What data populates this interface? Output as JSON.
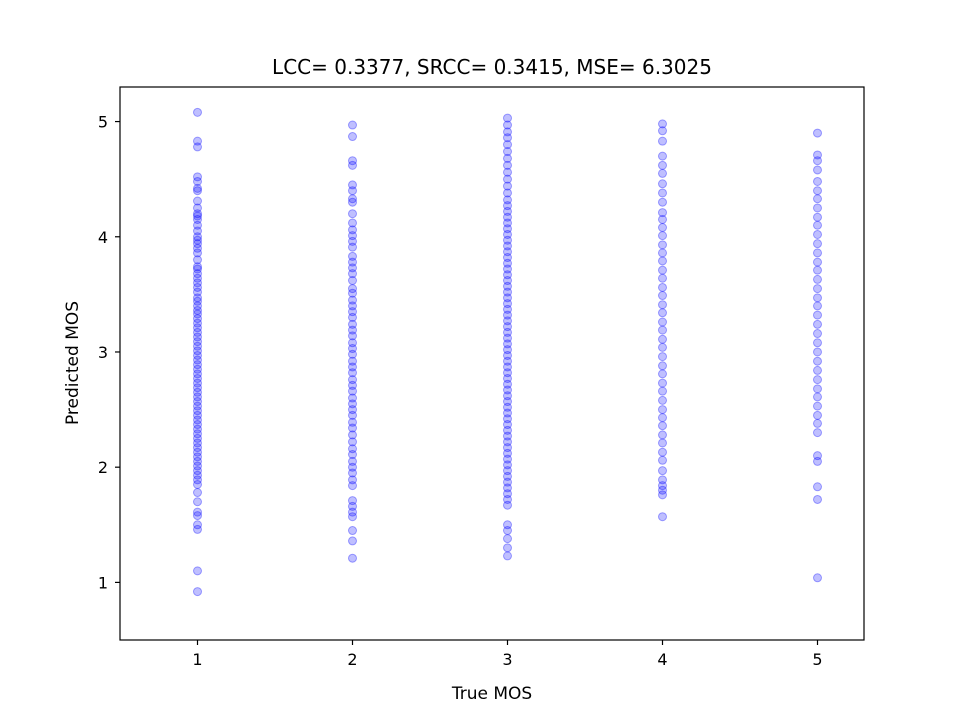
{
  "chart_data": {
    "type": "scatter",
    "title": "LCC= 0.3377, SRCC= 0.3415, MSE= 6.3025",
    "xlabel": "True MOS",
    "ylabel": "Predicted MOS",
    "xlim": [
      0.5,
      5.3
    ],
    "ylim": [
      0.5,
      5.3
    ],
    "xticks": [
      1,
      2,
      3,
      4,
      5
    ],
    "yticks": [
      1,
      2,
      3,
      4,
      5
    ],
    "grid": false,
    "marker_color": "#0000ff",
    "marker_alpha": 0.25,
    "series": [
      {
        "points": [
          {
            "x": 1,
            "y": 5.08
          },
          {
            "x": 1,
            "y": 4.83
          },
          {
            "x": 1,
            "y": 4.78
          },
          {
            "x": 1,
            "y": 4.52
          },
          {
            "x": 1,
            "y": 4.48
          },
          {
            "x": 1,
            "y": 4.42
          },
          {
            "x": 1,
            "y": 4.4
          },
          {
            "x": 1,
            "y": 4.31
          },
          {
            "x": 1,
            "y": 4.25
          },
          {
            "x": 1,
            "y": 4.2
          },
          {
            "x": 1,
            "y": 4.18
          },
          {
            "x": 1,
            "y": 4.15
          },
          {
            "x": 1,
            "y": 4.1
          },
          {
            "x": 1,
            "y": 4.05
          },
          {
            "x": 1,
            "y": 4.0
          },
          {
            "x": 1,
            "y": 3.97
          },
          {
            "x": 1,
            "y": 3.94
          },
          {
            "x": 1,
            "y": 3.9
          },
          {
            "x": 1,
            "y": 3.86
          },
          {
            "x": 1,
            "y": 3.8
          },
          {
            "x": 1,
            "y": 3.74
          },
          {
            "x": 1,
            "y": 3.72
          },
          {
            "x": 1,
            "y": 3.68
          },
          {
            "x": 1,
            "y": 3.64
          },
          {
            "x": 1,
            "y": 3.6
          },
          {
            "x": 1,
            "y": 3.56
          },
          {
            "x": 1,
            "y": 3.52
          },
          {
            "x": 1,
            "y": 3.47
          },
          {
            "x": 1,
            "y": 3.44
          },
          {
            "x": 1,
            "y": 3.4
          },
          {
            "x": 1,
            "y": 3.36
          },
          {
            "x": 1,
            "y": 3.33
          },
          {
            "x": 1,
            "y": 3.29
          },
          {
            "x": 1,
            "y": 3.25
          },
          {
            "x": 1,
            "y": 3.21
          },
          {
            "x": 1,
            "y": 3.17
          },
          {
            "x": 1,
            "y": 3.13
          },
          {
            "x": 1,
            "y": 3.09
          },
          {
            "x": 1,
            "y": 3.05
          },
          {
            "x": 1,
            "y": 3.01
          },
          {
            "x": 1,
            "y": 2.97
          },
          {
            "x": 1,
            "y": 2.93
          },
          {
            "x": 1,
            "y": 2.89
          },
          {
            "x": 1,
            "y": 2.85
          },
          {
            "x": 1,
            "y": 2.81
          },
          {
            "x": 1,
            "y": 2.77
          },
          {
            "x": 1,
            "y": 2.73
          },
          {
            "x": 1,
            "y": 2.69
          },
          {
            "x": 1,
            "y": 2.65
          },
          {
            "x": 1,
            "y": 2.61
          },
          {
            "x": 1,
            "y": 2.57
          },
          {
            "x": 1,
            "y": 2.53
          },
          {
            "x": 1,
            "y": 2.49
          },
          {
            "x": 1,
            "y": 2.45
          },
          {
            "x": 1,
            "y": 2.41
          },
          {
            "x": 1,
            "y": 2.37
          },
          {
            "x": 1,
            "y": 2.33
          },
          {
            "x": 1,
            "y": 2.29
          },
          {
            "x": 1,
            "y": 2.25
          },
          {
            "x": 1,
            "y": 2.21
          },
          {
            "x": 1,
            "y": 2.17
          },
          {
            "x": 1,
            "y": 2.13
          },
          {
            "x": 1,
            "y": 2.09
          },
          {
            "x": 1,
            "y": 2.05
          },
          {
            "x": 1,
            "y": 2.01
          },
          {
            "x": 1,
            "y": 1.97
          },
          {
            "x": 1,
            "y": 1.93
          },
          {
            "x": 1,
            "y": 1.89
          },
          {
            "x": 1,
            "y": 1.85
          },
          {
            "x": 1,
            "y": 1.78
          },
          {
            "x": 1,
            "y": 1.7
          },
          {
            "x": 1,
            "y": 1.61
          },
          {
            "x": 1,
            "y": 1.58
          },
          {
            "x": 1,
            "y": 1.5
          },
          {
            "x": 1,
            "y": 1.46
          },
          {
            "x": 1,
            "y": 1.1
          },
          {
            "x": 1,
            "y": 0.92
          },
          {
            "x": 2,
            "y": 4.97
          },
          {
            "x": 2,
            "y": 4.87
          },
          {
            "x": 2,
            "y": 4.66
          },
          {
            "x": 2,
            "y": 4.62
          },
          {
            "x": 2,
            "y": 4.45
          },
          {
            "x": 2,
            "y": 4.4
          },
          {
            "x": 2,
            "y": 4.33
          },
          {
            "x": 2,
            "y": 4.3
          },
          {
            "x": 2,
            "y": 4.2
          },
          {
            "x": 2,
            "y": 4.12
          },
          {
            "x": 2,
            "y": 4.06
          },
          {
            "x": 2,
            "y": 4.01
          },
          {
            "x": 2,
            "y": 3.96
          },
          {
            "x": 2,
            "y": 3.91
          },
          {
            "x": 2,
            "y": 3.83
          },
          {
            "x": 2,
            "y": 3.78
          },
          {
            "x": 2,
            "y": 3.73
          },
          {
            "x": 2,
            "y": 3.68
          },
          {
            "x": 2,
            "y": 3.62
          },
          {
            "x": 2,
            "y": 3.55
          },
          {
            "x": 2,
            "y": 3.51
          },
          {
            "x": 2,
            "y": 3.45
          },
          {
            "x": 2,
            "y": 3.4
          },
          {
            "x": 2,
            "y": 3.35
          },
          {
            "x": 2,
            "y": 3.3
          },
          {
            "x": 2,
            "y": 3.24
          },
          {
            "x": 2,
            "y": 3.19
          },
          {
            "x": 2,
            "y": 3.14
          },
          {
            "x": 2,
            "y": 3.08
          },
          {
            "x": 2,
            "y": 3.03
          },
          {
            "x": 2,
            "y": 2.98
          },
          {
            "x": 2,
            "y": 2.92
          },
          {
            "x": 2,
            "y": 2.87
          },
          {
            "x": 2,
            "y": 2.82
          },
          {
            "x": 2,
            "y": 2.76
          },
          {
            "x": 2,
            "y": 2.71
          },
          {
            "x": 2,
            "y": 2.66
          },
          {
            "x": 2,
            "y": 2.6
          },
          {
            "x": 2,
            "y": 2.55
          },
          {
            "x": 2,
            "y": 2.5
          },
          {
            "x": 2,
            "y": 2.45
          },
          {
            "x": 2,
            "y": 2.39
          },
          {
            "x": 2,
            "y": 2.34
          },
          {
            "x": 2,
            "y": 2.28
          },
          {
            "x": 2,
            "y": 2.22
          },
          {
            "x": 2,
            "y": 2.16
          },
          {
            "x": 2,
            "y": 2.11
          },
          {
            "x": 2,
            "y": 2.05
          },
          {
            "x": 2,
            "y": 2.0
          },
          {
            "x": 2,
            "y": 1.95
          },
          {
            "x": 2,
            "y": 1.89
          },
          {
            "x": 2,
            "y": 1.84
          },
          {
            "x": 2,
            "y": 1.71
          },
          {
            "x": 2,
            "y": 1.66
          },
          {
            "x": 2,
            "y": 1.61
          },
          {
            "x": 2,
            "y": 1.57
          },
          {
            "x": 2,
            "y": 1.45
          },
          {
            "x": 2,
            "y": 1.36
          },
          {
            "x": 2,
            "y": 1.21
          },
          {
            "x": 3,
            "y": 5.03
          },
          {
            "x": 3,
            "y": 4.97
          },
          {
            "x": 3,
            "y": 4.91
          },
          {
            "x": 3,
            "y": 4.86
          },
          {
            "x": 3,
            "y": 4.8
          },
          {
            "x": 3,
            "y": 4.74
          },
          {
            "x": 3,
            "y": 4.68
          },
          {
            "x": 3,
            "y": 4.62
          },
          {
            "x": 3,
            "y": 4.56
          },
          {
            "x": 3,
            "y": 4.5
          },
          {
            "x": 3,
            "y": 4.44
          },
          {
            "x": 3,
            "y": 4.38
          },
          {
            "x": 3,
            "y": 4.32
          },
          {
            "x": 3,
            "y": 4.27
          },
          {
            "x": 3,
            "y": 4.22
          },
          {
            "x": 3,
            "y": 4.17
          },
          {
            "x": 3,
            "y": 4.12
          },
          {
            "x": 3,
            "y": 4.07
          },
          {
            "x": 3,
            "y": 4.02
          },
          {
            "x": 3,
            "y": 3.97
          },
          {
            "x": 3,
            "y": 3.92
          },
          {
            "x": 3,
            "y": 3.87
          },
          {
            "x": 3,
            "y": 3.82
          },
          {
            "x": 3,
            "y": 3.77
          },
          {
            "x": 3,
            "y": 3.72
          },
          {
            "x": 3,
            "y": 3.67
          },
          {
            "x": 3,
            "y": 3.62
          },
          {
            "x": 3,
            "y": 3.57
          },
          {
            "x": 3,
            "y": 3.52
          },
          {
            "x": 3,
            "y": 3.47
          },
          {
            "x": 3,
            "y": 3.42
          },
          {
            "x": 3,
            "y": 3.37
          },
          {
            "x": 3,
            "y": 3.32
          },
          {
            "x": 3,
            "y": 3.27
          },
          {
            "x": 3,
            "y": 3.22
          },
          {
            "x": 3,
            "y": 3.17
          },
          {
            "x": 3,
            "y": 3.12
          },
          {
            "x": 3,
            "y": 3.07
          },
          {
            "x": 3,
            "y": 3.02
          },
          {
            "x": 3,
            "y": 2.97
          },
          {
            "x": 3,
            "y": 2.92
          },
          {
            "x": 3,
            "y": 2.87
          },
          {
            "x": 3,
            "y": 2.82
          },
          {
            "x": 3,
            "y": 2.77
          },
          {
            "x": 3,
            "y": 2.72
          },
          {
            "x": 3,
            "y": 2.67
          },
          {
            "x": 3,
            "y": 2.62
          },
          {
            "x": 3,
            "y": 2.57
          },
          {
            "x": 3,
            "y": 2.52
          },
          {
            "x": 3,
            "y": 2.47
          },
          {
            "x": 3,
            "y": 2.42
          },
          {
            "x": 3,
            "y": 2.37
          },
          {
            "x": 3,
            "y": 2.32
          },
          {
            "x": 3,
            "y": 2.27
          },
          {
            "x": 3,
            "y": 2.22
          },
          {
            "x": 3,
            "y": 2.17
          },
          {
            "x": 3,
            "y": 2.12
          },
          {
            "x": 3,
            "y": 2.07
          },
          {
            "x": 3,
            "y": 2.02
          },
          {
            "x": 3,
            "y": 1.97
          },
          {
            "x": 3,
            "y": 1.92
          },
          {
            "x": 3,
            "y": 1.87
          },
          {
            "x": 3,
            "y": 1.82
          },
          {
            "x": 3,
            "y": 1.77
          },
          {
            "x": 3,
            "y": 1.72
          },
          {
            "x": 3,
            "y": 1.67
          },
          {
            "x": 3,
            "y": 1.5
          },
          {
            "x": 3,
            "y": 1.45
          },
          {
            "x": 3,
            "y": 1.38
          },
          {
            "x": 3,
            "y": 1.3
          },
          {
            "x": 3,
            "y": 1.23
          },
          {
            "x": 4,
            "y": 4.98
          },
          {
            "x": 4,
            "y": 4.92
          },
          {
            "x": 4,
            "y": 4.83
          },
          {
            "x": 4,
            "y": 4.7
          },
          {
            "x": 4,
            "y": 4.62
          },
          {
            "x": 4,
            "y": 4.55
          },
          {
            "x": 4,
            "y": 4.46
          },
          {
            "x": 4,
            "y": 4.38
          },
          {
            "x": 4,
            "y": 4.3
          },
          {
            "x": 4,
            "y": 4.21
          },
          {
            "x": 4,
            "y": 4.15
          },
          {
            "x": 4,
            "y": 4.08
          },
          {
            "x": 4,
            "y": 4.01
          },
          {
            "x": 4,
            "y": 3.93
          },
          {
            "x": 4,
            "y": 3.86
          },
          {
            "x": 4,
            "y": 3.79
          },
          {
            "x": 4,
            "y": 3.71
          },
          {
            "x": 4,
            "y": 3.64
          },
          {
            "x": 4,
            "y": 3.56
          },
          {
            "x": 4,
            "y": 3.49
          },
          {
            "x": 4,
            "y": 3.41
          },
          {
            "x": 4,
            "y": 3.34
          },
          {
            "x": 4,
            "y": 3.26
          },
          {
            "x": 4,
            "y": 3.19
          },
          {
            "x": 4,
            "y": 3.11
          },
          {
            "x": 4,
            "y": 3.04
          },
          {
            "x": 4,
            "y": 2.96
          },
          {
            "x": 4,
            "y": 2.88
          },
          {
            "x": 4,
            "y": 2.81
          },
          {
            "x": 4,
            "y": 2.73
          },
          {
            "x": 4,
            "y": 2.66
          },
          {
            "x": 4,
            "y": 2.58
          },
          {
            "x": 4,
            "y": 2.5
          },
          {
            "x": 4,
            "y": 2.43
          },
          {
            "x": 4,
            "y": 2.36
          },
          {
            "x": 4,
            "y": 2.28
          },
          {
            "x": 4,
            "y": 2.21
          },
          {
            "x": 4,
            "y": 2.13
          },
          {
            "x": 4,
            "y": 2.06
          },
          {
            "x": 4,
            "y": 1.97
          },
          {
            "x": 4,
            "y": 1.89
          },
          {
            "x": 4,
            "y": 1.84
          },
          {
            "x": 4,
            "y": 1.8
          },
          {
            "x": 4,
            "y": 1.76
          },
          {
            "x": 4,
            "y": 1.57
          },
          {
            "x": 5,
            "y": 4.9
          },
          {
            "x": 5,
            "y": 4.71
          },
          {
            "x": 5,
            "y": 4.66
          },
          {
            "x": 5,
            "y": 4.58
          },
          {
            "x": 5,
            "y": 4.48
          },
          {
            "x": 5,
            "y": 4.4
          },
          {
            "x": 5,
            "y": 4.33
          },
          {
            "x": 5,
            "y": 4.25
          },
          {
            "x": 5,
            "y": 4.17
          },
          {
            "x": 5,
            "y": 4.1
          },
          {
            "x": 5,
            "y": 4.02
          },
          {
            "x": 5,
            "y": 3.94
          },
          {
            "x": 5,
            "y": 3.86
          },
          {
            "x": 5,
            "y": 3.78
          },
          {
            "x": 5,
            "y": 3.71
          },
          {
            "x": 5,
            "y": 3.63
          },
          {
            "x": 5,
            "y": 3.55
          },
          {
            "x": 5,
            "y": 3.47
          },
          {
            "x": 5,
            "y": 3.4
          },
          {
            "x": 5,
            "y": 3.32
          },
          {
            "x": 5,
            "y": 3.24
          },
          {
            "x": 5,
            "y": 3.16
          },
          {
            "x": 5,
            "y": 3.08
          },
          {
            "x": 5,
            "y": 3.0
          },
          {
            "x": 5,
            "y": 2.92
          },
          {
            "x": 5,
            "y": 2.84
          },
          {
            "x": 5,
            "y": 2.76
          },
          {
            "x": 5,
            "y": 2.68
          },
          {
            "x": 5,
            "y": 2.61
          },
          {
            "x": 5,
            "y": 2.53
          },
          {
            "x": 5,
            "y": 2.45
          },
          {
            "x": 5,
            "y": 2.38
          },
          {
            "x": 5,
            "y": 2.3
          },
          {
            "x": 5,
            "y": 2.1
          },
          {
            "x": 5,
            "y": 2.05
          },
          {
            "x": 5,
            "y": 1.83
          },
          {
            "x": 5,
            "y": 1.72
          },
          {
            "x": 5,
            "y": 1.04
          }
        ]
      }
    ]
  }
}
